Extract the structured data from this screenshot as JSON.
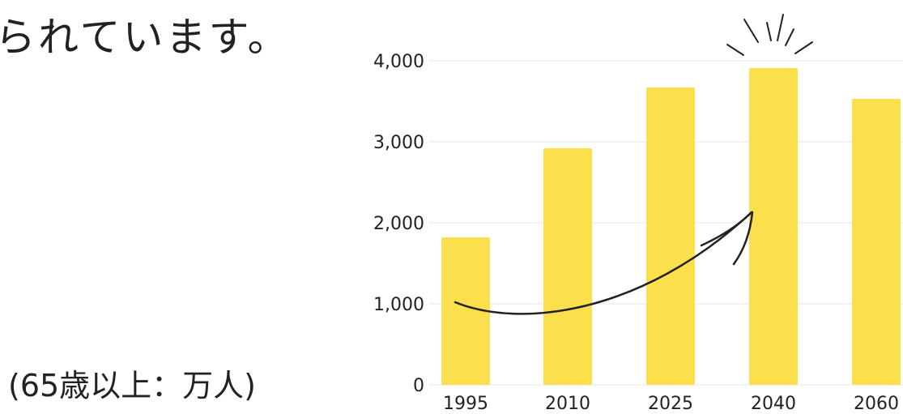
{
  "headline": "られています。",
  "unit_note": "(65歳以上：万人)",
  "colors": {
    "bar": "#FBDF4C",
    "text": "#222222",
    "grid": "#e6e6e6",
    "arrow": "#222222"
  },
  "chart_data": {
    "type": "bar",
    "categories": [
      "1995",
      "2010",
      "2025",
      "2040",
      "2060"
    ],
    "values": [
      1820,
      2920,
      3670,
      3910,
      3530
    ],
    "ylim": [
      0,
      4000
    ],
    "yticks": [
      0,
      1000,
      2000,
      3000,
      4000
    ],
    "ytick_labels": [
      "0",
      "1,000",
      "2,000",
      "3,000",
      "4,000"
    ],
    "grid": true,
    "highlight_category": "2040"
  }
}
